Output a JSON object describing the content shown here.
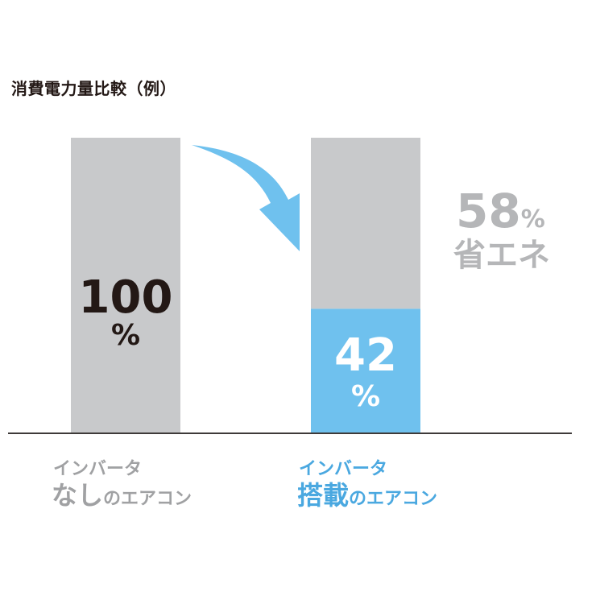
{
  "title": "消費電力量比較（例）",
  "colors": {
    "bar_gray": "#c8c9cb",
    "bar_blue": "#6fc1ee",
    "dark_text": "#231815",
    "white_text": "#ffffff",
    "light_gray_text": "#b5b6b8",
    "caption_gray": "#a0a1a3",
    "caption_blue": "#4aa8e0",
    "axis": "#3e3a39",
    "arrow": "#6fc1ee"
  },
  "chart_data": {
    "type": "bar",
    "stacked": true,
    "ylim": [
      0,
      100
    ],
    "categories": [
      "インバータなしのエアコン",
      "インバータ搭載のエアコン"
    ],
    "series": [
      {
        "values": [
          100,
          42
        ]
      },
      {
        "values": [
          0,
          58
        ]
      }
    ],
    "data_labels": [
      {
        "value": "100",
        "unit": "%"
      },
      {
        "value": "42",
        "unit": "%"
      }
    ],
    "annotation": {
      "value": "58",
      "unit": "%",
      "label": "省エネ"
    }
  },
  "captions": [
    {
      "line1": "インバータ",
      "line2_big": "なし",
      "line2_small": "のエアコン"
    },
    {
      "line1": "インバータ",
      "line2_big": "搭載",
      "line2_small": "のエアコン"
    }
  ]
}
